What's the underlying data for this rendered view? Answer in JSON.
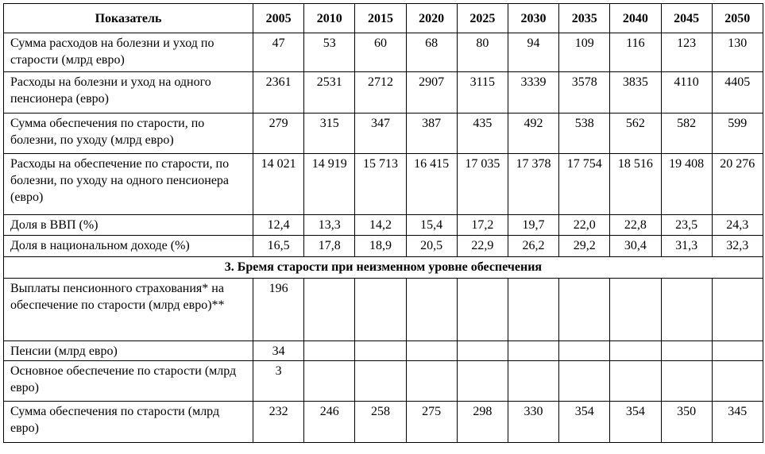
{
  "table": {
    "header": [
      "Показатель",
      "2005",
      "2010",
      "2015",
      "2020",
      "2025",
      "2030",
      "2035",
      "2040",
      "2045",
      "2050"
    ],
    "groups": [
      {
        "rows": [
          [
            "Сумма расходов на болезни и уход по старости (млрд евро)",
            "47",
            "53",
            "60",
            "68",
            "80",
            "94",
            "109",
            "116",
            "123",
            "130"
          ],
          [
            "Расходы на болезни и уход на одного пенсионера (евро)",
            "2361",
            "2531",
            "2712",
            "2907",
            "3115",
            "3339",
            "3578",
            "3835",
            "4110",
            "4405"
          ],
          [
            "Сумма обеспечения по старости, по болезни, по уходу (млрд евро)",
            "279",
            "315",
            "347",
            "387",
            "435",
            "492",
            "538",
            "562",
            "582",
            "599"
          ],
          [
            "Расходы на обеспечение по старости, по болезни, по уходу на одного пенсионера (евро)",
            "14 021",
            "14 919",
            "15 713",
            "16 415",
            "17 035",
            "17 378",
            "17 754",
            "18 516",
            "19 408",
            "20 276"
          ],
          [
            "Доля в ВВП (%)",
            "12,4",
            "13,3",
            "14,2",
            "15,4",
            "17,2",
            "19,7",
            "22,0",
            "22,8",
            "23,5",
            "24,3"
          ],
          [
            "Доля в национальном доходе (%)",
            "16,5",
            "17,8",
            "18,9",
            "20,5",
            "22,9",
            "26,2",
            "29,2",
            "30,4",
            "31,3",
            "32,3"
          ]
        ]
      },
      {
        "title": "3. Бремя старости при неизменном уровне обеспечения",
        "rows": [
          [
            "Выплаты пенсионного страхования* на обеспечение по старости (млрд евро)**",
            "196"
          ],
          [
            "Пенсии (млрд евро)",
            "34"
          ],
          [
            "Основное обеспечение по старости (млрд евро)",
            "3"
          ],
          [
            "Сумма обеспечения по старости (млрд евро)",
            "232",
            "246",
            "258",
            "275",
            "298",
            "330",
            "354",
            "354",
            "350",
            "345"
          ]
        ]
      }
    ]
  }
}
